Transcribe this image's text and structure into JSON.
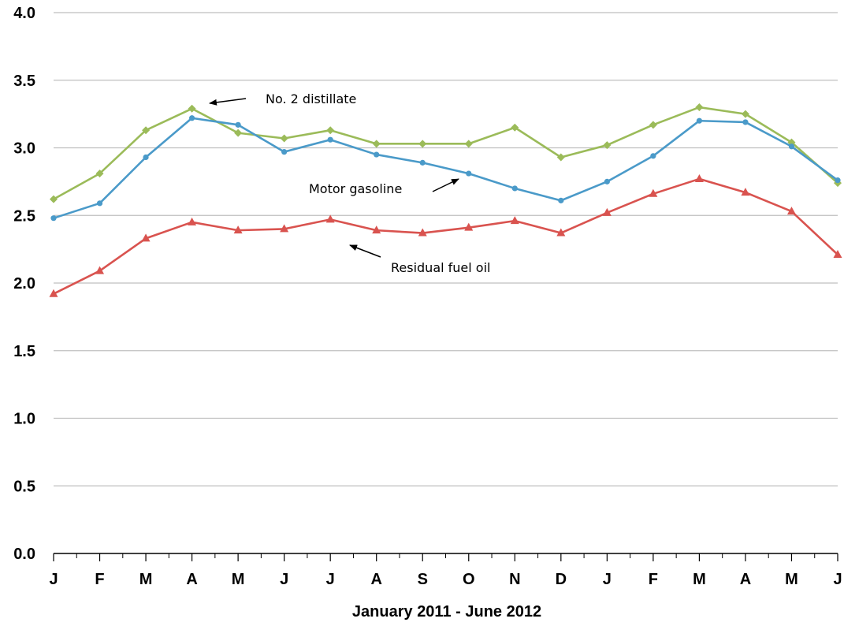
{
  "chart_data": {
    "type": "line",
    "title": "",
    "xlabel": "January 2011 - June 2012",
    "ylabel": "",
    "ylim": [
      0,
      4
    ],
    "yticks": [
      "0.0",
      "0.5",
      "1.0",
      "1.5",
      "2.0",
      "2.5",
      "3.0",
      "3.5",
      "4.0"
    ],
    "categories": [
      "J",
      "F",
      "M",
      "A",
      "M",
      "J",
      "J",
      "A",
      "S",
      "O",
      "N",
      "D",
      "J",
      "F",
      "M",
      "A",
      "M",
      "J"
    ],
    "grid": "horizontal",
    "legend": "none",
    "series": [
      {
        "name": "No. 2 distillate",
        "color": "#9bbb59",
        "marker": "diamond",
        "values": [
          2.62,
          2.81,
          3.13,
          3.29,
          3.11,
          3.07,
          3.13,
          3.03,
          3.03,
          3.03,
          3.15,
          2.93,
          3.02,
          3.17,
          3.3,
          3.25,
          3.04,
          2.74
        ]
      },
      {
        "name": "Motor gasoline",
        "color": "#4a9ac9",
        "marker": "circle",
        "values": [
          2.48,
          2.59,
          2.93,
          3.22,
          3.17,
          2.97,
          3.06,
          2.95,
          2.89,
          2.81,
          2.7,
          2.61,
          2.75,
          2.94,
          3.2,
          3.19,
          3.01,
          2.76
        ]
      },
      {
        "name": "Residual fuel oil",
        "color": "#d9534f",
        "marker": "triangle",
        "values": [
          1.92,
          2.09,
          2.33,
          2.45,
          2.39,
          2.4,
          2.47,
          2.39,
          2.37,
          2.41,
          2.46,
          2.37,
          2.52,
          2.66,
          2.77,
          2.67,
          2.53,
          2.21
        ]
      }
    ],
    "annotations": [
      {
        "text": "No. 2 distillate",
        "series": 0,
        "arrow_to_index": 3
      },
      {
        "text": "Motor gasoline",
        "series": 1,
        "arrow_to_index": 9
      },
      {
        "text": "Residual fuel oil",
        "series": 2,
        "arrow_to_index": 6
      }
    ]
  }
}
